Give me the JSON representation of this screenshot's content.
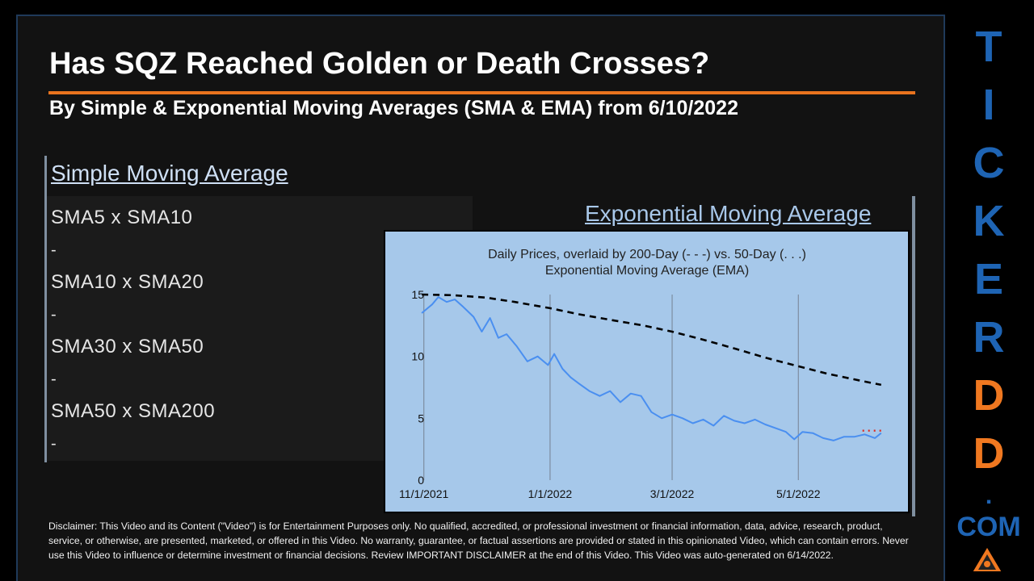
{
  "header": {
    "title": "Has SQZ Reached Golden or Death Crosses?",
    "subtitle": "By Simple & Exponential Moving Averages (SMA & EMA) from 6/10/2022"
  },
  "sma_section": {
    "heading": "Simple Moving Average",
    "items": [
      {
        "label": "SMA5 x SMA10",
        "value": "-"
      },
      {
        "label": "SMA10 x SMA20",
        "value": "-"
      },
      {
        "label": "SMA30 x SMA50",
        "value": "-"
      },
      {
        "label": "SMA50 x SMA200",
        "value": "-"
      }
    ]
  },
  "ema_section": {
    "heading": "Exponential Moving Average"
  },
  "chart_data": {
    "type": "line",
    "title": "Daily Prices, overlaid by 200-Day (- - -) vs. 50-Day (. . .)",
    "subtitle": "Exponential Moving Average (EMA)",
    "xlabel": "",
    "ylabel": "",
    "x_ticks": [
      "11/1/2021",
      "1/1/2022",
      "3/1/2022",
      "5/1/2022"
    ],
    "y_ticks": [
      0,
      5,
      10,
      15
    ],
    "ylim": [
      0,
      15
    ],
    "xlim": [
      "2021-10-29",
      "2022-06-14"
    ],
    "grid": "vertical lines at x ticks",
    "series": [
      {
        "key": "price",
        "style": "solid",
        "color": "#4a8ff0",
        "x": [
          "2021-10-31",
          "2021-11-05",
          "2021-11-08",
          "2021-11-12",
          "2021-11-16",
          "2021-11-20",
          "2021-11-25",
          "2021-11-29",
          "2021-12-03",
          "2021-12-07",
          "2021-12-11",
          "2021-12-16",
          "2021-12-21",
          "2021-12-26",
          "2021-12-31",
          "2022-01-03",
          "2022-01-07",
          "2022-01-11",
          "2022-01-15",
          "2022-01-20",
          "2022-01-25",
          "2022-01-30",
          "2022-02-04",
          "2022-02-09",
          "2022-02-14",
          "2022-02-19",
          "2022-02-24",
          "2022-03-01",
          "2022-03-06",
          "2022-03-11",
          "2022-03-16",
          "2022-03-21",
          "2022-03-26",
          "2022-03-31",
          "2022-04-05",
          "2022-04-10",
          "2022-04-15",
          "2022-04-20",
          "2022-04-25",
          "2022-04-29",
          "2022-05-03",
          "2022-05-08",
          "2022-05-13",
          "2022-05-18",
          "2022-05-23",
          "2022-05-28",
          "2022-06-02",
          "2022-06-07",
          "2022-06-10"
        ],
        "values": [
          13.5,
          14.2,
          14.8,
          14.4,
          14.6,
          14.0,
          13.2,
          12.0,
          13.1,
          11.5,
          11.8,
          10.8,
          9.6,
          10.0,
          9.3,
          10.2,
          9.0,
          8.3,
          7.8,
          7.2,
          6.8,
          7.2,
          6.3,
          7.0,
          6.8,
          5.5,
          5.0,
          5.3,
          5.0,
          4.6,
          4.9,
          4.4,
          5.2,
          4.8,
          4.6,
          4.9,
          4.5,
          4.2,
          3.9,
          3.3,
          3.9,
          3.8,
          3.4,
          3.2,
          3.5,
          3.5,
          3.7,
          3.4,
          3.8
        ]
      },
      {
        "key": "ema200",
        "name": "200-Day",
        "style": "dashed",
        "color": "#000000",
        "x": [
          "2021-10-31",
          "2021-11-15",
          "2021-12-01",
          "2021-12-15",
          "2022-01-01",
          "2022-01-15",
          "2022-02-01",
          "2022-02-15",
          "2022-03-01",
          "2022-03-15",
          "2022-04-01",
          "2022-04-15",
          "2022-05-01",
          "2022-05-15",
          "2022-06-01",
          "2022-06-10"
        ],
        "values": [
          15.0,
          14.95,
          14.75,
          14.4,
          13.9,
          13.4,
          12.9,
          12.5,
          12.0,
          11.4,
          10.6,
          9.9,
          9.2,
          8.6,
          8.0,
          7.7
        ]
      },
      {
        "key": "ema50",
        "name": "50-Day",
        "style": "dotted",
        "color": "#e0281e",
        "x": [
          "2022-06-01",
          "2022-06-10"
        ],
        "values": [
          4.0,
          4.0
        ]
      }
    ]
  },
  "disclaimer": "Disclaimer: This Video and its Content (\"Video\") is for Entertainment Purposes only. No qualified, accredited, or professional investment or financial information, data, advice, research, product, service, or otherwise, are presented, marketed, or offered in this Video. No warranty, guarantee, or factual assertions are provided or stated in this opinionated Video, which can contain errors. Never use this Video to influence or determine investment or financial decisions. Review IMPORTANT DISCLAIMER at the end of this Video. This Video was auto-generated on 6/14/2022.",
  "brand": {
    "letters": [
      "T",
      "I",
      "C",
      "K",
      "E",
      "R",
      "D",
      "D"
    ],
    "dot": ".",
    "suffix": "COM",
    "blue": "#1e64b4",
    "orange": "#f07820"
  }
}
